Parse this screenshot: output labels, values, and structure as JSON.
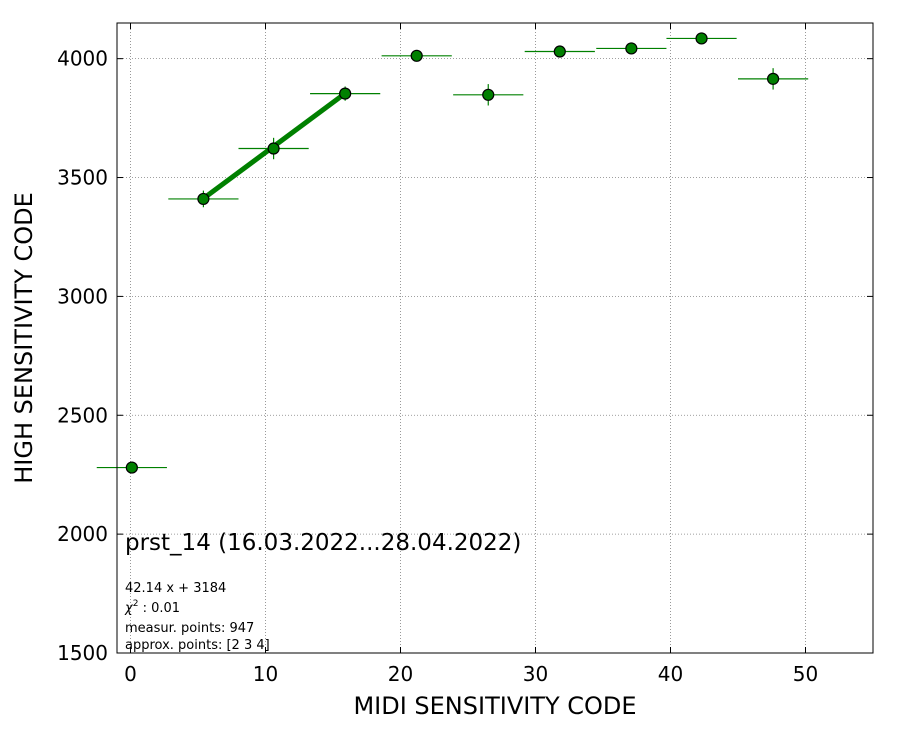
{
  "chart_data": {
    "type": "scatter",
    "xlabel": "MIDI SENSITIVITY CODE",
    "ylabel": "HIGH SENSITIVITY CODE",
    "xlim": [
      -1,
      55
    ],
    "ylim": [
      1500,
      4150
    ],
    "xticks": [
      0,
      10,
      20,
      30,
      40,
      50
    ],
    "yticks": [
      1500,
      2000,
      2500,
      3000,
      3500,
      4000
    ],
    "grid": true,
    "marker_color": "#008000",
    "fit_color": "#008000",
    "points": [
      {
        "x": 0.1,
        "y": 2280,
        "xerr": 2.6,
        "yerr": 0
      },
      {
        "x": 5.4,
        "y": 3410,
        "xerr": 2.6,
        "yerr": 35
      },
      {
        "x": 10.6,
        "y": 3622,
        "xerr": 2.6,
        "yerr": 45
      },
      {
        "x": 15.9,
        "y": 3853,
        "xerr": 2.6,
        "yerr": 30
      },
      {
        "x": 21.2,
        "y": 4012,
        "xerr": 2.6,
        "yerr": 20
      },
      {
        "x": 26.5,
        "y": 3848,
        "xerr": 2.6,
        "yerr": 45
      },
      {
        "x": 31.8,
        "y": 4030,
        "xerr": 2.6,
        "yerr": 25
      },
      {
        "x": 37.1,
        "y": 4043,
        "xerr": 2.6,
        "yerr": 15
      },
      {
        "x": 42.3,
        "y": 4085,
        "xerr": 2.6,
        "yerr": 10
      },
      {
        "x": 47.6,
        "y": 3915,
        "xerr": 2.6,
        "yerr": 45
      }
    ],
    "fit": {
      "slope": 42.14,
      "intercept": 3184,
      "x_range": [
        5.4,
        15.9
      ]
    },
    "annotations": {
      "title": "prst_14 (16.03.2022...28.04.2022)",
      "equation": "42.14 x + 3184",
      "chi2_label": "χ",
      "chi2_sup": "2",
      "chi2_value": " : 0.01",
      "measur_points": "measur. points: 947",
      "approx_points": "approx. points: [2 3 4]"
    }
  }
}
